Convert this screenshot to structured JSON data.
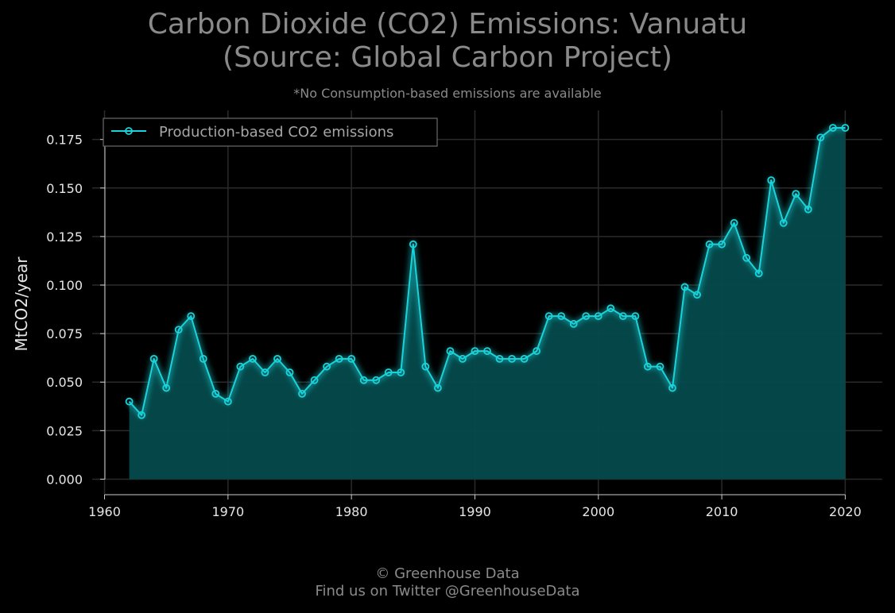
{
  "title_line1": "Carbon Dioxide (CO2) Emissions: Vanuatu",
  "title_line2": "(Source: Global Carbon Project)",
  "subtitle": "*No Consumption-based emissions are available",
  "footer_line1": "© Greenhouse Data",
  "footer_line2": "Find us on Twitter @GreenhouseData",
  "colors": {
    "background": "#000000",
    "series": "#19d3da",
    "fill": "#054a4c",
    "grid": "#2a2a2a",
    "text": "#8a8a8a"
  },
  "chart_data": {
    "type": "area",
    "title": "Carbon Dioxide (CO2) Emissions: Vanuatu (Source: Global Carbon Project)",
    "xlabel": "",
    "ylabel": "MtCO2/year",
    "xlim": [
      1959,
      2023
    ],
    "ylim": [
      -0.008,
      0.19
    ],
    "xticks": [
      1960,
      1970,
      1980,
      1990,
      2000,
      2010,
      2020
    ],
    "yticks": [
      0.0,
      0.025,
      0.05,
      0.075,
      0.1,
      0.125,
      0.15,
      0.175
    ],
    "ytick_labels": [
      "0.000",
      "0.025",
      "0.050",
      "0.075",
      "0.100",
      "0.125",
      "0.150",
      "0.175"
    ],
    "grid": true,
    "legend_position": "top-left",
    "series": [
      {
        "name": "Production-based CO2 emissions",
        "x": [
          1962,
          1963,
          1964,
          1965,
          1966,
          1967,
          1968,
          1969,
          1970,
          1971,
          1972,
          1973,
          1974,
          1975,
          1976,
          1977,
          1978,
          1979,
          1980,
          1981,
          1982,
          1983,
          1984,
          1985,
          1986,
          1987,
          1988,
          1989,
          1990,
          1991,
          1992,
          1993,
          1994,
          1995,
          1996,
          1997,
          1998,
          1999,
          2000,
          2001,
          2002,
          2003,
          2004,
          2005,
          2006,
          2007,
          2008,
          2009,
          2010,
          2011,
          2012,
          2013,
          2014,
          2015,
          2016,
          2017,
          2018,
          2019,
          2020
        ],
        "y": [
          0.04,
          0.033,
          0.062,
          0.047,
          0.077,
          0.084,
          0.062,
          0.044,
          0.04,
          0.058,
          0.062,
          0.055,
          0.062,
          0.055,
          0.044,
          0.051,
          0.058,
          0.062,
          0.062,
          0.051,
          0.051,
          0.055,
          0.055,
          0.121,
          0.058,
          0.047,
          0.066,
          0.062,
          0.066,
          0.066,
          0.062,
          0.062,
          0.062,
          0.066,
          0.084,
          0.084,
          0.08,
          0.084,
          0.084,
          0.088,
          0.084,
          0.084,
          0.058,
          0.058,
          0.047,
          0.099,
          0.095,
          0.121,
          0.121,
          0.132,
          0.114,
          0.106,
          0.154,
          0.132,
          0.147,
          0.139,
          0.176,
          0.181,
          0.181
        ]
      }
    ]
  }
}
